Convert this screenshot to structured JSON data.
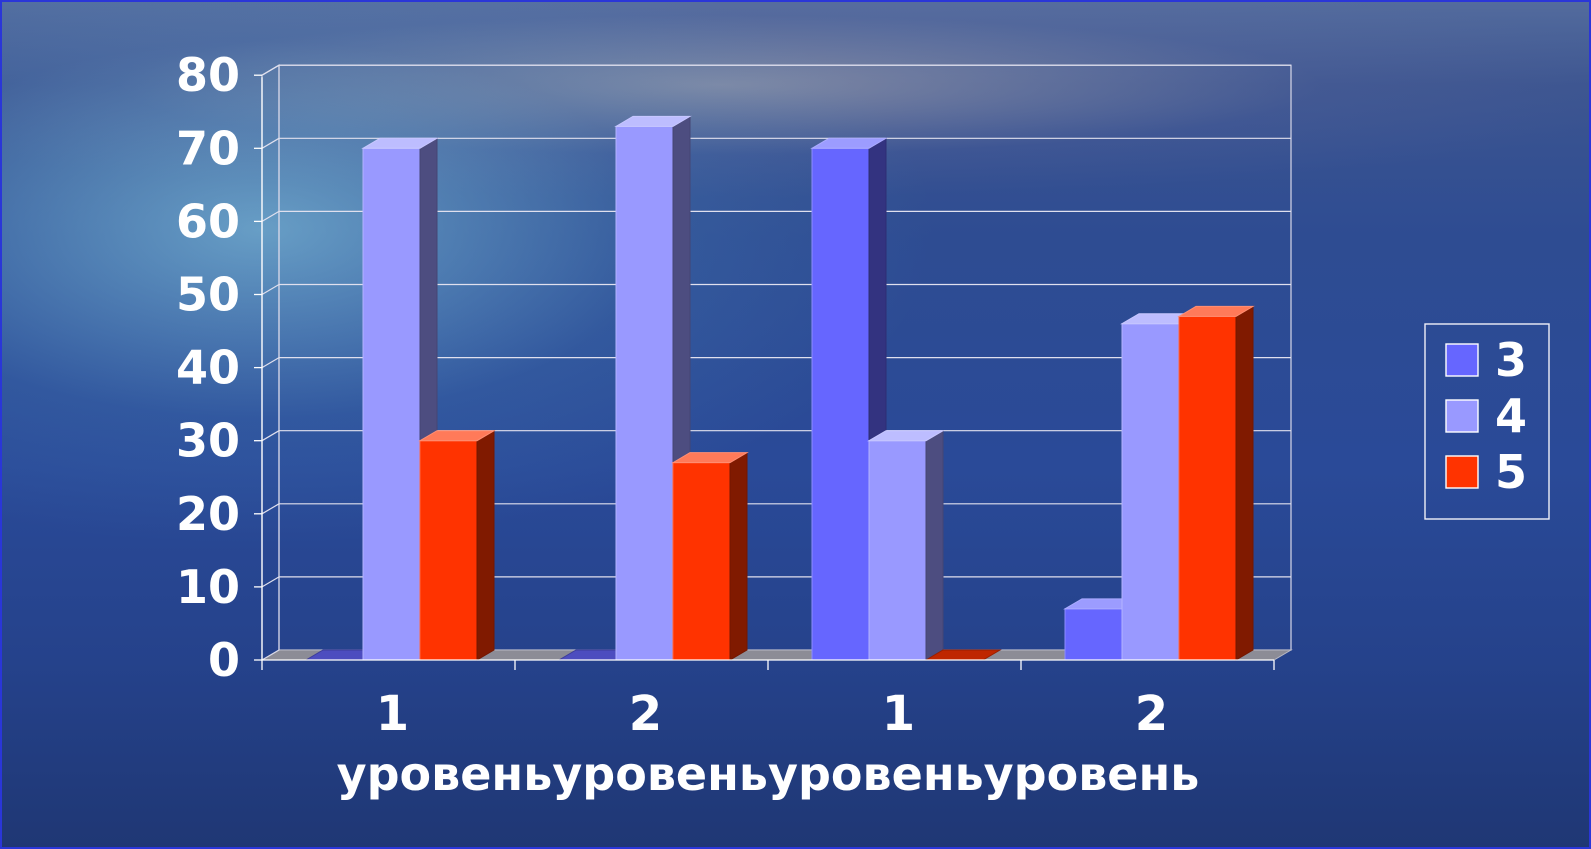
{
  "chart_data": {
    "type": "bar",
    "categories": [
      "1",
      "2",
      "1",
      "2"
    ],
    "xlabel": "уровеньуровеньуровеньуровень",
    "ylabel": "",
    "title": "",
    "ylim": [
      0,
      80
    ],
    "yticks": [
      "0",
      "10",
      "20",
      "30",
      "40",
      "50",
      "60",
      "70",
      "80"
    ],
    "grid": true,
    "legend_position": "right",
    "series": [
      {
        "name": "3",
        "values": [
          0,
          0,
          70,
          7
        ],
        "color": "#6666ff"
      },
      {
        "name": "4",
        "values": [
          70,
          73,
          30,
          46
        ],
        "color": "#9999ff"
      },
      {
        "name": "5",
        "values": [
          30,
          27,
          0,
          47
        ],
        "color": "#ff3300"
      }
    ]
  }
}
